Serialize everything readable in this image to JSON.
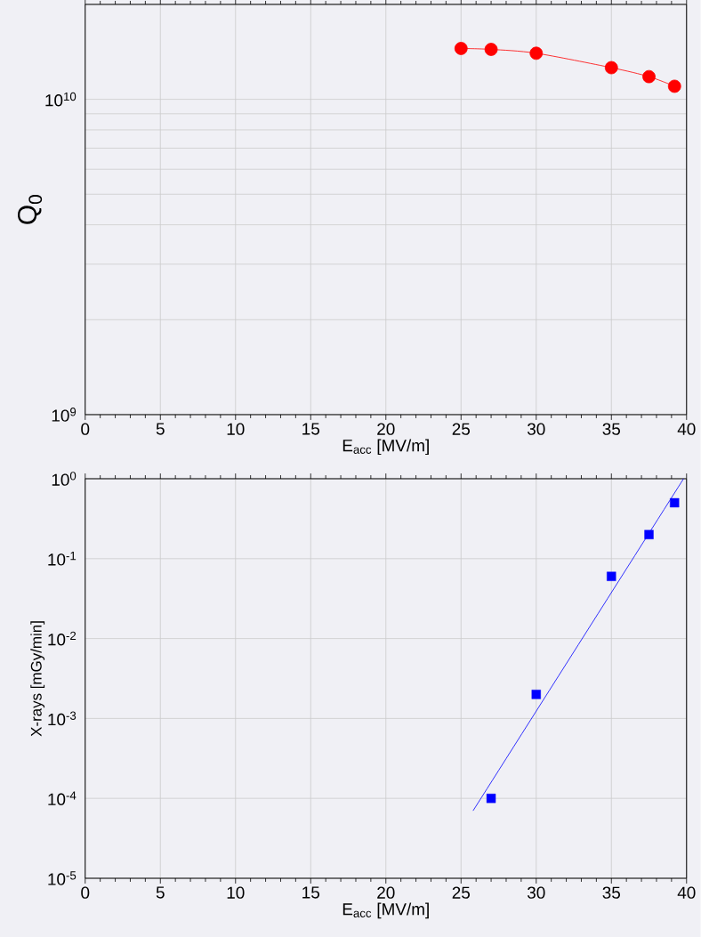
{
  "chart_data": [
    {
      "type": "line",
      "xlabel": "E$_{acc}$ [MV/m]",
      "ylabel": "Q$_{0}$",
      "log": "y",
      "grid": true,
      "xlim": [
        0,
        40
      ],
      "xticks": [
        0,
        5,
        10,
        15,
        20,
        25,
        30,
        35,
        40
      ],
      "ylim": [
        1000000000.0,
        20000000000.0
      ],
      "yticks": [
        {
          "value": 1000000000.0,
          "label": "10$^{9}$"
        },
        {
          "value": 2000000000.0,
          "label": null
        },
        {
          "value": 3000000000.0,
          "label": null
        },
        {
          "value": 4000000000.0,
          "label": null
        },
        {
          "value": 5000000000.0,
          "label": null
        },
        {
          "value": 6000000000.0,
          "label": null
        },
        {
          "value": 7000000000.0,
          "label": null
        },
        {
          "value": 8000000000.0,
          "label": null
        },
        {
          "value": 9000000000.0,
          "label": null
        },
        {
          "value": 10000000000.0,
          "label": "10$^{10}$"
        },
        {
          "value": 20000000000.0,
          "label": null
        }
      ],
      "series": [
        {
          "color": "#ff0000",
          "marker": "circle",
          "x": [
            25,
            27,
            30,
            35,
            37.5,
            39.2
          ],
          "values": [
            14500000000.0,
            14400000000.0,
            14000000000.0,
            12600000000.0,
            11800000000.0,
            11000000000.0
          ]
        }
      ]
    },
    {
      "type": "scatter",
      "xlabel": "E$_{acc}$ [MV/m]",
      "ylabel": "X-rays [mGy/min]",
      "log": "y",
      "grid": true,
      "xlim": [
        0,
        40
      ],
      "xticks": [
        0,
        5,
        10,
        15,
        20,
        25,
        30,
        35,
        40
      ],
      "ylim": [
        1e-05,
        1
      ],
      "yticks": [
        {
          "value": 1e-05,
          "label": "10$^{-5}$"
        },
        {
          "value": 0.0001,
          "label": "10$^{-4}$"
        },
        {
          "value": 0.001,
          "label": "10$^{-3}$"
        },
        {
          "value": 0.01,
          "label": "10$^{-2}$"
        },
        {
          "value": 0.1,
          "label": "10$^{-1}$"
        },
        {
          "value": 1,
          "label": "10$^{0}$"
        }
      ],
      "series": [
        {
          "color": "#0000ff",
          "marker": "square",
          "x": [
            27,
            30,
            35,
            37.5,
            39.2
          ],
          "values": [
            0.0001,
            0.002,
            0.06,
            0.2,
            0.5
          ]
        },
        {
          "type": "line",
          "color": "#0000ff",
          "marker": "none",
          "x": [
            25.8,
            39.8
          ],
          "values": [
            7e-05,
            1
          ]
        }
      ]
    }
  ]
}
